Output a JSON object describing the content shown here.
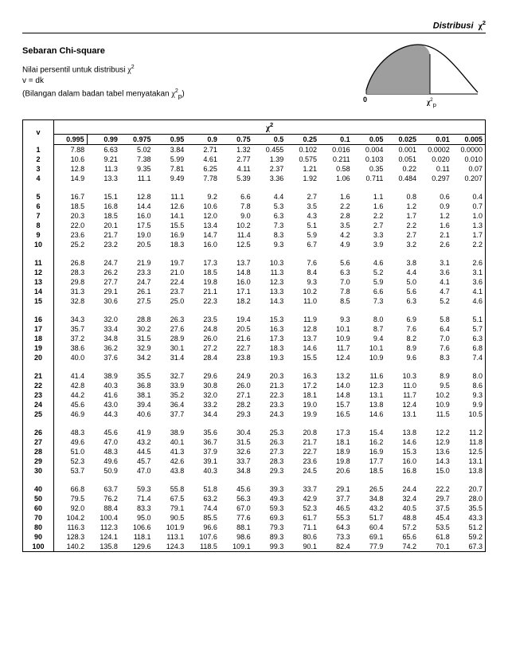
{
  "header": {
    "right_title": "Distribusi",
    "right_sym": "χ",
    "right_sup": "2"
  },
  "title": "Sebaran Chi-square",
  "subtitle": {
    "line1a": "Nilai persentil untuk distribusi ",
    "line1_sym": "χ",
    "line1_sup": "2",
    "line2": "v = dk",
    "line3a": "(Bilangan dalam badan tabel menyatakan ",
    "line3_sym": "χ",
    "line3_sup": "2",
    "line3_sub": "p",
    "line3b": ")"
  },
  "axis": {
    "zero": "0",
    "chi": "χ",
    "chi_sup": "2",
    "chi_sub": "p"
  },
  "table": {
    "v_label": "v",
    "chi_header_sym": "χ",
    "chi_header_sup": "2",
    "col_headers": [
      "0.995",
      "0.99",
      "0.975",
      "0.95",
      "0.9",
      "0.75",
      "0.5",
      "0.25",
      "0.1",
      "0.05",
      "0.025",
      "0.01",
      "0.005"
    ],
    "groups": [
      [
        [
          "1",
          "7.88",
          "6.63",
          "5.02",
          "3.84",
          "2.71",
          "1.32",
          "0.455",
          "0.102",
          "0.016",
          "0.004",
          "0.001",
          "0.0002",
          "0.0000"
        ],
        [
          "2",
          "10.6",
          "9.21",
          "7.38",
          "5.99",
          "4.61",
          "2.77",
          "1.39",
          "0.575",
          "0.211",
          "0.103",
          "0.051",
          "0.020",
          "0.010"
        ],
        [
          "3",
          "12.8",
          "11.3",
          "9.35",
          "7.81",
          "6.25",
          "4.11",
          "2.37",
          "1.21",
          "0.58",
          "0.35",
          "0.22",
          "0.11",
          "0.07"
        ],
        [
          "4",
          "14.9",
          "13.3",
          "11.1",
          "9.49",
          "7.78",
          "5.39",
          "3.36",
          "1.92",
          "1.06",
          "0.711",
          "0.484",
          "0.297",
          "0.207"
        ]
      ],
      [
        [
          "5",
          "16.7",
          "15.1",
          "12.8",
          "11.1",
          "9.2",
          "6.6",
          "4.4",
          "2.7",
          "1.6",
          "1.1",
          "0.8",
          "0.6",
          "0.4"
        ],
        [
          "6",
          "18.5",
          "16.8",
          "14.4",
          "12.6",
          "10.6",
          "7.8",
          "5.3",
          "3.5",
          "2.2",
          "1.6",
          "1.2",
          "0.9",
          "0.7"
        ],
        [
          "7",
          "20.3",
          "18.5",
          "16.0",
          "14.1",
          "12.0",
          "9.0",
          "6.3",
          "4.3",
          "2.8",
          "2.2",
          "1.7",
          "1.2",
          "1.0"
        ],
        [
          "8",
          "22.0",
          "20.1",
          "17.5",
          "15.5",
          "13.4",
          "10.2",
          "7.3",
          "5.1",
          "3.5",
          "2.7",
          "2.2",
          "1.6",
          "1.3"
        ],
        [
          "9",
          "23.6",
          "21.7",
          "19.0",
          "16.9",
          "14.7",
          "11.4",
          "8.3",
          "5.9",
          "4.2",
          "3.3",
          "2.7",
          "2.1",
          "1.7"
        ],
        [
          "10",
          "25.2",
          "23.2",
          "20.5",
          "18.3",
          "16.0",
          "12.5",
          "9.3",
          "6.7",
          "4.9",
          "3.9",
          "3.2",
          "2.6",
          "2.2"
        ]
      ],
      [
        [
          "11",
          "26.8",
          "24.7",
          "21.9",
          "19.7",
          "17.3",
          "13.7",
          "10.3",
          "7.6",
          "5.6",
          "4.6",
          "3.8",
          "3.1",
          "2.6"
        ],
        [
          "12",
          "28.3",
          "26.2",
          "23.3",
          "21.0",
          "18.5",
          "14.8",
          "11.3",
          "8.4",
          "6.3",
          "5.2",
          "4.4",
          "3.6",
          "3.1"
        ],
        [
          "13",
          "29.8",
          "27.7",
          "24.7",
          "22.4",
          "19.8",
          "16.0",
          "12.3",
          "9.3",
          "7.0",
          "5.9",
          "5.0",
          "4.1",
          "3.6"
        ],
        [
          "14",
          "31.3",
          "29.1",
          "26.1",
          "23.7",
          "21.1",
          "17.1",
          "13.3",
          "10.2",
          "7.8",
          "6.6",
          "5.6",
          "4.7",
          "4.1"
        ],
        [
          "15",
          "32.8",
          "30.6",
          "27.5",
          "25.0",
          "22.3",
          "18.2",
          "14.3",
          "11.0",
          "8.5",
          "7.3",
          "6.3",
          "5.2",
          "4.6"
        ]
      ],
      [
        [
          "16",
          "34.3",
          "32.0",
          "28.8",
          "26.3",
          "23.5",
          "19.4",
          "15.3",
          "11.9",
          "9.3",
          "8.0",
          "6.9",
          "5.8",
          "5.1"
        ],
        [
          "17",
          "35.7",
          "33.4",
          "30.2",
          "27.6",
          "24.8",
          "20.5",
          "16.3",
          "12.8",
          "10.1",
          "8.7",
          "7.6",
          "6.4",
          "5.7"
        ],
        [
          "18",
          "37.2",
          "34.8",
          "31.5",
          "28.9",
          "26.0",
          "21.6",
          "17.3",
          "13.7",
          "10.9",
          "9.4",
          "8.2",
          "7.0",
          "6.3"
        ],
        [
          "19",
          "38.6",
          "36.2",
          "32.9",
          "30.1",
          "27.2",
          "22.7",
          "18.3",
          "14.6",
          "11.7",
          "10.1",
          "8.9",
          "7.6",
          "6.8"
        ],
        [
          "20",
          "40.0",
          "37.6",
          "34.2",
          "31.4",
          "28.4",
          "23.8",
          "19.3",
          "15.5",
          "12.4",
          "10.9",
          "9.6",
          "8.3",
          "7.4"
        ]
      ],
      [
        [
          "21",
          "41.4",
          "38.9",
          "35.5",
          "32.7",
          "29.6",
          "24.9",
          "20.3",
          "16.3",
          "13.2",
          "11.6",
          "10.3",
          "8.9",
          "8.0"
        ],
        [
          "22",
          "42.8",
          "40.3",
          "36.8",
          "33.9",
          "30.8",
          "26.0",
          "21.3",
          "17.2",
          "14.0",
          "12.3",
          "11.0",
          "9.5",
          "8.6"
        ],
        [
          "23",
          "44.2",
          "41.6",
          "38.1",
          "35.2",
          "32.0",
          "27.1",
          "22.3",
          "18.1",
          "14.8",
          "13.1",
          "11.7",
          "10.2",
          "9.3"
        ],
        [
          "24",
          "45.6",
          "43.0",
          "39.4",
          "36.4",
          "33.2",
          "28.2",
          "23.3",
          "19.0",
          "15.7",
          "13.8",
          "12.4",
          "10.9",
          "9.9"
        ],
        [
          "25",
          "46.9",
          "44.3",
          "40.6",
          "37.7",
          "34.4",
          "29.3",
          "24.3",
          "19.9",
          "16.5",
          "14.6",
          "13.1",
          "11.5",
          "10.5"
        ]
      ],
      [
        [
          "26",
          "48.3",
          "45.6",
          "41.9",
          "38.9",
          "35.6",
          "30.4",
          "25.3",
          "20.8",
          "17.3",
          "15.4",
          "13.8",
          "12.2",
          "11.2"
        ],
        [
          "27",
          "49.6",
          "47.0",
          "43.2",
          "40.1",
          "36.7",
          "31.5",
          "26.3",
          "21.7",
          "18.1",
          "16.2",
          "14.6",
          "12.9",
          "11.8"
        ],
        [
          "28",
          "51.0",
          "48.3",
          "44.5",
          "41.3",
          "37.9",
          "32.6",
          "27.3",
          "22.7",
          "18.9",
          "16.9",
          "15.3",
          "13.6",
          "12.5"
        ],
        [
          "29",
          "52.3",
          "49.6",
          "45.7",
          "42.6",
          "39.1",
          "33.7",
          "28.3",
          "23.6",
          "19.8",
          "17.7",
          "16.0",
          "14.3",
          "13.1"
        ],
        [
          "30",
          "53.7",
          "50.9",
          "47.0",
          "43.8",
          "40.3",
          "34.8",
          "29.3",
          "24.5",
          "20.6",
          "18.5",
          "16.8",
          "15.0",
          "13.8"
        ]
      ],
      [
        [
          "40",
          "66.8",
          "63.7",
          "59.3",
          "55.8",
          "51.8",
          "45.6",
          "39.3",
          "33.7",
          "29.1",
          "26.5",
          "24.4",
          "22.2",
          "20.7"
        ],
        [
          "50",
          "79.5",
          "76.2",
          "71.4",
          "67.5",
          "63.2",
          "56.3",
          "49.3",
          "42.9",
          "37.7",
          "34.8",
          "32.4",
          "29.7",
          "28.0"
        ],
        [
          "60",
          "92.0",
          "88.4",
          "83.3",
          "79.1",
          "74.4",
          "67.0",
          "59.3",
          "52.3",
          "46.5",
          "43.2",
          "40.5",
          "37.5",
          "35.5"
        ],
        [
          "70",
          "104.2",
          "100.4",
          "95.0",
          "90.5",
          "85.5",
          "77.6",
          "69.3",
          "61.7",
          "55.3",
          "51.7",
          "48.8",
          "45.4",
          "43.3"
        ],
        [
          "80",
          "116.3",
          "112.3",
          "106.6",
          "101.9",
          "96.6",
          "88.1",
          "79.3",
          "71.1",
          "64.3",
          "60.4",
          "57.2",
          "53.5",
          "51.2"
        ],
        [
          "90",
          "128.3",
          "124.1",
          "118.1",
          "113.1",
          "107.6",
          "98.6",
          "89.3",
          "80.6",
          "73.3",
          "69.1",
          "65.6",
          "61.8",
          "59.2"
        ],
        [
          "100",
          "140.2",
          "135.8",
          "129.6",
          "124.3",
          "118.5",
          "109.1",
          "99.3",
          "90.1",
          "82.4",
          "77.9",
          "74.2",
          "70.1",
          "67.3"
        ]
      ]
    ]
  }
}
